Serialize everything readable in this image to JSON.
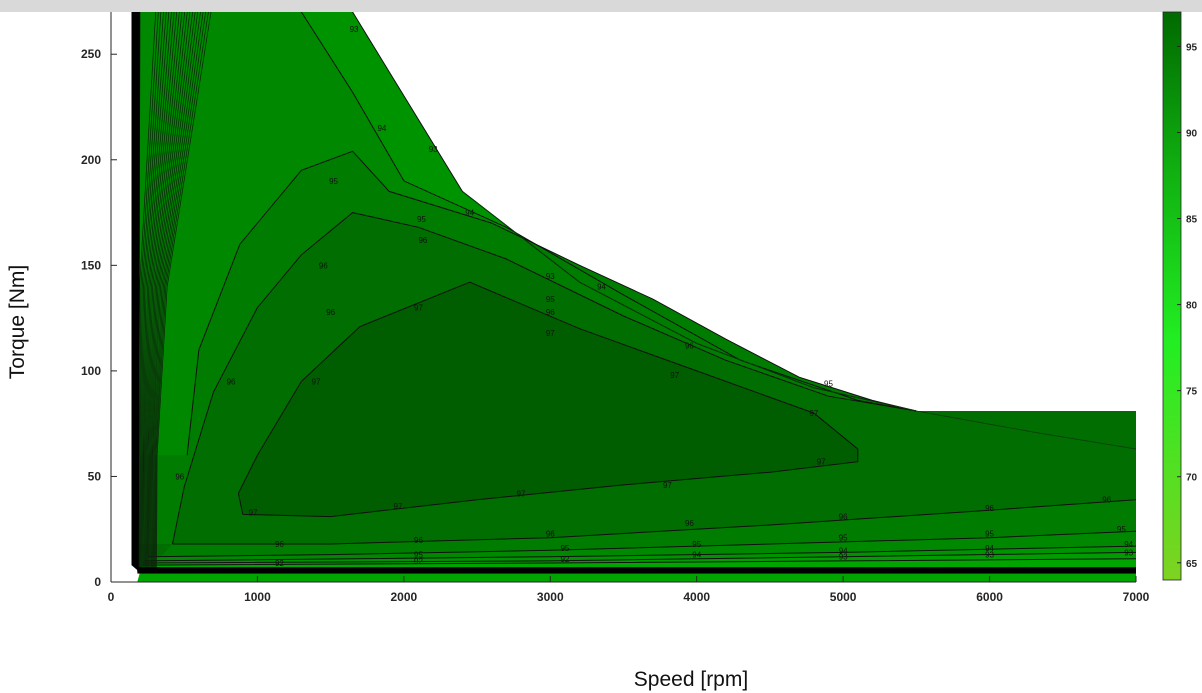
{
  "chart_data": {
    "type": "contour",
    "title": "",
    "xlabel": "Speed [rpm]",
    "ylabel": "Torque [Nm]",
    "xlim": [
      0,
      7000
    ],
    "ylim": [
      0,
      270
    ],
    "x_ticks": [
      0,
      1000,
      2000,
      3000,
      4000,
      5000,
      6000,
      7000
    ],
    "y_ticks": [
      0,
      50,
      100,
      150,
      200,
      250
    ],
    "colorbar": {
      "range": [
        64,
        97
      ],
      "ticks": [
        65,
        70,
        75,
        80,
        85,
        90,
        95
      ],
      "color_low": "#7ed321",
      "color_mid": "#22ee22",
      "color_high": "#006a00"
    },
    "operating_envelope": [
      {
        "x": 180,
        "y": 270
      },
      {
        "x": 1650,
        "y": 270
      },
      {
        "x": 2400,
        "y": 185
      },
      {
        "x": 3200,
        "y": 142
      },
      {
        "x": 4000,
        "y": 113
      },
      {
        "x": 4800,
        "y": 92
      },
      {
        "x": 5500,
        "y": 81
      },
      {
        "x": 6300,
        "y": 71
      },
      {
        "x": 7000,
        "y": 63
      }
    ],
    "contours": [
      {
        "level": 93,
        "points": [
          {
            "x": 1650,
            "y": 270
          },
          {
            "x": 2400,
            "y": 185
          },
          {
            "x": 3200,
            "y": 142
          },
          {
            "x": 4000,
            "y": 113
          },
          {
            "x": 4800,
            "y": 92
          },
          {
            "x": 5500,
            "y": 81
          }
        ]
      },
      {
        "level": 94,
        "points": [
          {
            "x": 1300,
            "y": 270
          },
          {
            "x": 1650,
            "y": 232
          },
          {
            "x": 2000,
            "y": 190
          },
          {
            "x": 2700,
            "y": 168
          },
          {
            "x": 3500,
            "y": 136
          },
          {
            "x": 4300,
            "y": 105
          },
          {
            "x": 5100,
            "y": 86
          },
          {
            "x": 5500,
            "y": 81
          }
        ]
      },
      {
        "level": 95,
        "points": [
          {
            "x": 520,
            "y": 60
          },
          {
            "x": 600,
            "y": 110
          },
          {
            "x": 880,
            "y": 160
          },
          {
            "x": 1300,
            "y": 195
          },
          {
            "x": 1650,
            "y": 204
          },
          {
            "x": 1900,
            "y": 185
          },
          {
            "x": 2600,
            "y": 170
          },
          {
            "x": 3200,
            "y": 150
          },
          {
            "x": 3700,
            "y": 134
          },
          {
            "x": 4200,
            "y": 115
          },
          {
            "x": 4700,
            "y": 97
          },
          {
            "x": 5200,
            "y": 86
          },
          {
            "x": 5500,
            "y": 81
          }
        ]
      },
      {
        "level": 96,
        "points": [
          {
            "x": 420,
            "y": 18
          },
          {
            "x": 500,
            "y": 45
          },
          {
            "x": 700,
            "y": 90
          },
          {
            "x": 1000,
            "y": 130
          },
          {
            "x": 1300,
            "y": 155
          },
          {
            "x": 1650,
            "y": 175
          },
          {
            "x": 2100,
            "y": 168
          },
          {
            "x": 2700,
            "y": 153
          },
          {
            "x": 3500,
            "y": 126
          },
          {
            "x": 4200,
            "y": 105
          },
          {
            "x": 4900,
            "y": 88
          },
          {
            "x": 5500,
            "y": 81
          }
        ]
      },
      {
        "level": 97,
        "points": [
          {
            "x": 900,
            "y": 32
          },
          {
            "x": 870,
            "y": 42
          },
          {
            "x": 1000,
            "y": 60
          },
          {
            "x": 1300,
            "y": 95
          },
          {
            "x": 1700,
            "y": 121
          },
          {
            "x": 2450,
            "y": 142
          },
          {
            "x": 3200,
            "y": 120
          },
          {
            "x": 4000,
            "y": 100
          },
          {
            "x": 4800,
            "y": 80
          },
          {
            "x": 5100,
            "y": 63
          },
          {
            "x": 5100,
            "y": 57
          },
          {
            "x": 4500,
            "y": 52
          },
          {
            "x": 3500,
            "y": 46
          },
          {
            "x": 2500,
            "y": 39
          },
          {
            "x": 1500,
            "y": 31
          },
          {
            "x": 900,
            "y": 32
          }
        ]
      },
      {
        "level": 96,
        "points": [
          {
            "x": 420,
            "y": 18
          },
          {
            "x": 1500,
            "y": 18
          },
          {
            "x": 3000,
            "y": 21
          },
          {
            "x": 4500,
            "y": 27
          },
          {
            "x": 6000,
            "y": 34
          },
          {
            "x": 7000,
            "y": 39
          }
        ]
      },
      {
        "level": 95,
        "points": [
          {
            "x": 250,
            "y": 12
          },
          {
            "x": 1500,
            "y": 13
          },
          {
            "x": 3000,
            "y": 15
          },
          {
            "x": 4500,
            "y": 18
          },
          {
            "x": 6000,
            "y": 21
          },
          {
            "x": 7000,
            "y": 24
          }
        ]
      },
      {
        "level": 94,
        "points": [
          {
            "x": 230,
            "y": 10
          },
          {
            "x": 3000,
            "y": 12
          },
          {
            "x": 5000,
            "y": 14
          },
          {
            "x": 7000,
            "y": 17
          }
        ]
      },
      {
        "level": 93,
        "points": [
          {
            "x": 220,
            "y": 9
          },
          {
            "x": 3000,
            "y": 10
          },
          {
            "x": 5000,
            "y": 12
          },
          {
            "x": 7000,
            "y": 14
          }
        ]
      },
      {
        "level": 92,
        "points": [
          {
            "x": 210,
            "y": 8
          },
          {
            "x": 3000,
            "y": 9
          },
          {
            "x": 5000,
            "y": 10
          },
          {
            "x": 7000,
            "y": 11
          }
        ]
      }
    ],
    "contour_labels": [
      {
        "text": "93",
        "x": 1660,
        "y": 262
      },
      {
        "text": "93",
        "x": 2200,
        "y": 205
      },
      {
        "text": "93",
        "x": 3000,
        "y": 145
      },
      {
        "text": "94",
        "x": 1850,
        "y": 215
      },
      {
        "text": "94",
        "x": 2450,
        "y": 175
      },
      {
        "text": "94",
        "x": 3350,
        "y": 140
      },
      {
        "text": "95",
        "x": 1520,
        "y": 190
      },
      {
        "text": "95",
        "x": 2120,
        "y": 172
      },
      {
        "text": "95",
        "x": 3000,
        "y": 134
      },
      {
        "text": "95",
        "x": 4900,
        "y": 94
      },
      {
        "text": "96",
        "x": 1450,
        "y": 150
      },
      {
        "text": "96",
        "x": 2130,
        "y": 162
      },
      {
        "text": "96",
        "x": 3000,
        "y": 128
      },
      {
        "text": "96",
        "x": 3950,
        "y": 112
      },
      {
        "text": "96",
        "x": 820,
        "y": 95
      },
      {
        "text": "96",
        "x": 1500,
        "y": 128
      },
      {
        "text": "96",
        "x": 470,
        "y": 50
      },
      {
        "text": "97",
        "x": 2100,
        "y": 130
      },
      {
        "text": "97",
        "x": 3000,
        "y": 118
      },
      {
        "text": "97",
        "x": 3850,
        "y": 98
      },
      {
        "text": "97",
        "x": 4800,
        "y": 80
      },
      {
        "text": "97",
        "x": 1400,
        "y": 95
      },
      {
        "text": "97",
        "x": 4850,
        "y": 57
      },
      {
        "text": "97",
        "x": 3800,
        "y": 46
      },
      {
        "text": "97",
        "x": 2800,
        "y": 42
      },
      {
        "text": "97",
        "x": 1960,
        "y": 36
      },
      {
        "text": "97",
        "x": 970,
        "y": 33
      },
      {
        "text": "96",
        "x": 1150,
        "y": 18
      },
      {
        "text": "96",
        "x": 2100,
        "y": 20
      },
      {
        "text": "96",
        "x": 3000,
        "y": 23
      },
      {
        "text": "96",
        "x": 3950,
        "y": 28
      },
      {
        "text": "96",
        "x": 5000,
        "y": 31
      },
      {
        "text": "96",
        "x": 6000,
        "y": 35
      },
      {
        "text": "96",
        "x": 6800,
        "y": 39
      },
      {
        "text": "95",
        "x": 2100,
        "y": 13
      },
      {
        "text": "95",
        "x": 3100,
        "y": 16
      },
      {
        "text": "95",
        "x": 4000,
        "y": 18
      },
      {
        "text": "95",
        "x": 5000,
        "y": 21
      },
      {
        "text": "95",
        "x": 6000,
        "y": 23
      },
      {
        "text": "95",
        "x": 6900,
        "y": 25
      },
      {
        "text": "94",
        "x": 4000,
        "y": 13
      },
      {
        "text": "94",
        "x": 5000,
        "y": 15
      },
      {
        "text": "94",
        "x": 6000,
        "y": 16
      },
      {
        "text": "94",
        "x": 6950,
        "y": 18
      },
      {
        "text": "93",
        "x": 5000,
        "y": 12
      },
      {
        "text": "93",
        "x": 6000,
        "y": 13
      },
      {
        "text": "93",
        "x": 6950,
        "y": 14
      },
      {
        "text": "92",
        "x": 1150,
        "y": 9
      },
      {
        "text": "92",
        "x": 2100,
        "y": 10
      },
      {
        "text": "92",
        "x": 3100,
        "y": 11
      }
    ],
    "legend": "colorbar-right"
  }
}
